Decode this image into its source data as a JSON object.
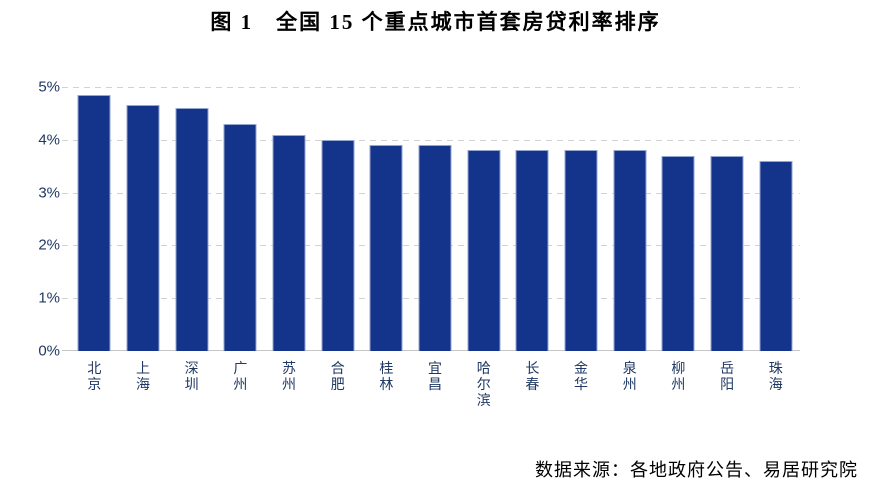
{
  "title": "图 1　全国 15 个重点城市首套房贷利率排序",
  "source": "数据来源：各地政府公告、易居研究院",
  "chart_data": {
    "type": "bar",
    "title": "图 1　全国 15 个重点城市首套房贷利率排序",
    "categories": [
      "北京",
      "上海",
      "深圳",
      "广州",
      "苏州",
      "合肥",
      "桂林",
      "宜昌",
      "哈尔滨",
      "长春",
      "金华",
      "泉州",
      "柳州",
      "岳阳",
      "珠海"
    ],
    "values": [
      4.85,
      4.65,
      4.6,
      4.3,
      4.1,
      4.0,
      3.9,
      3.9,
      3.8,
      3.8,
      3.8,
      3.8,
      3.7,
      3.7,
      3.6
    ],
    "xlabel": "",
    "ylabel": "",
    "ylim": [
      0,
      5
    ],
    "yticks": [
      "5%",
      "4%",
      "3%",
      "2%",
      "1%",
      "0%"
    ],
    "grid": "horizontal-dashed",
    "legend": "none",
    "annotation": "数据来源：各地政府公告、易居研究院"
  },
  "colors": {
    "bar_fill": "#14338B",
    "bar_edge": "#94A5D0",
    "axis_label": "#1F3864",
    "gridline": "#D2D2D2",
    "title_text": "#000000",
    "source_text": "#000000",
    "background": "#FFFFFF"
  }
}
